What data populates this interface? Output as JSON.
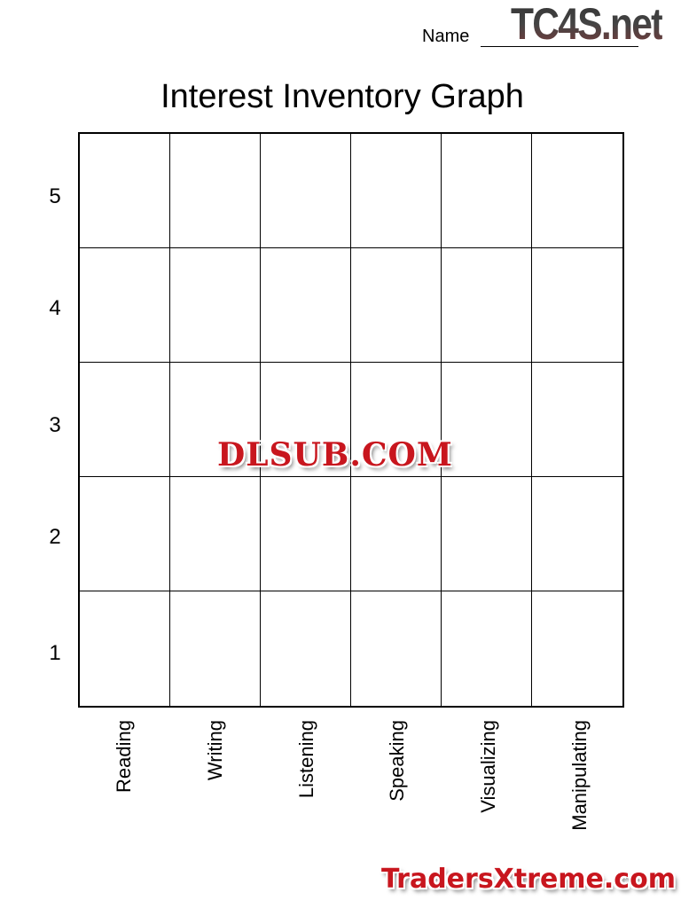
{
  "header": {
    "name_label": "Name",
    "logo": "TC4S.net"
  },
  "title": "Interest Inventory Graph",
  "y_labels": [
    "5",
    "4",
    "3",
    "2",
    "1"
  ],
  "x_labels": [
    "Reading",
    "Writing",
    "Listening",
    "Speaking",
    "Visualizing",
    "Manipulating"
  ],
  "watermarks": {
    "center": "DLSUB.COM",
    "bottom": "TradersXtreme.com"
  }
}
